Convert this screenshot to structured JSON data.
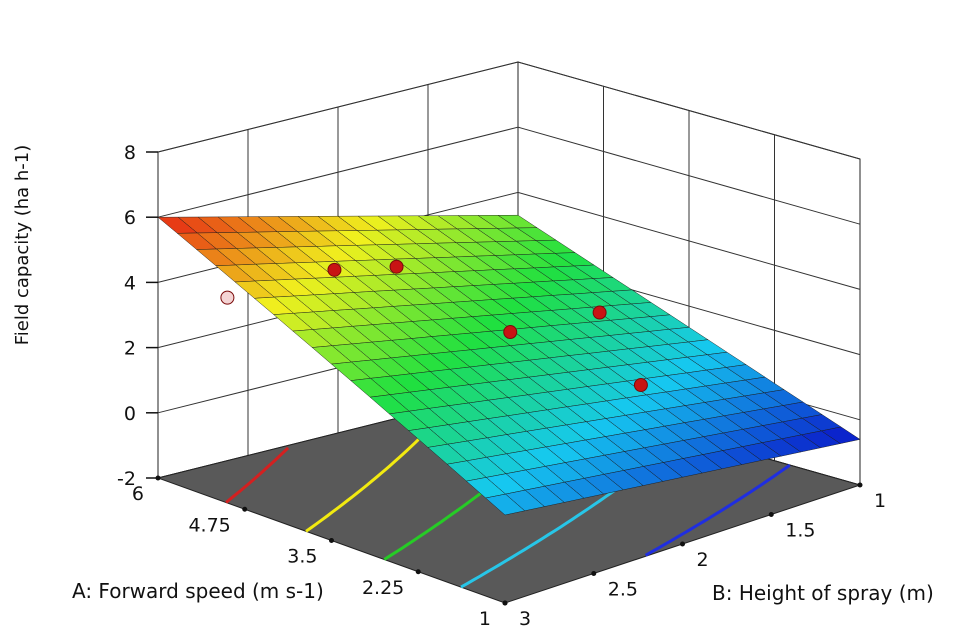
{
  "chart_data": {
    "type": "3d-surface",
    "title": "",
    "zlabel": "Field capacity (ha h-1)",
    "xlabel": "A: Forward speed (m s-1)",
    "ylabel": "B: Height of spray (m)",
    "z_ticks": [
      "8",
      "6",
      "4",
      "2",
      "0",
      "-2"
    ],
    "x_ticks": [
      "6",
      "4.75",
      "3.5",
      "2.25",
      "1"
    ],
    "y_ticks": [
      "1",
      "1.5",
      "2",
      "2.5",
      "3"
    ],
    "xlim": [
      1,
      6
    ],
    "ylim": [
      1,
      3
    ],
    "zlim": [
      -2,
      8
    ],
    "surface_corners": [
      {
        "A": 6,
        "B": 3,
        "z": 6.0
      },
      {
        "A": 1,
        "B": 3,
        "z": 0.7
      },
      {
        "A": 6,
        "B": 1,
        "z": 3.3
      },
      {
        "A": 1,
        "B": 1,
        "z": -0.6
      }
    ],
    "contour_levels": [
      {
        "name": "red",
        "color": "#d42020"
      },
      {
        "name": "yellow",
        "color": "#f2ea10"
      },
      {
        "name": "green",
        "color": "#26cc26"
      },
      {
        "name": "cyan",
        "color": "#27c6e8"
      },
      {
        "name": "blue",
        "color": "#1f2ee0"
      }
    ],
    "design_points": [
      {
        "A": 4.75,
        "B": 2.5,
        "z": 4.6,
        "above_surface": true
      },
      {
        "A": 4.5,
        "B": 2.25,
        "z": 4.5,
        "above_surface": true
      },
      {
        "A": 3.5,
        "B": 2.0,
        "z": 2.8,
        "above_surface": true
      },
      {
        "A": 2.25,
        "B": 1.75,
        "z": 1.6,
        "above_surface": true
      },
      {
        "A": 3.5,
        "B": 1.5,
        "z": 2.6,
        "above_surface": true
      },
      {
        "A": 5.0,
        "B": 3.0,
        "z": 4.3,
        "above_surface": false
      },
      {
        "A": 3.75,
        "B": 2.5,
        "z": 3.2,
        "above_surface": false
      },
      {
        "A": 1.75,
        "B": 1.25,
        "z": 0.6,
        "above_surface": false
      }
    ],
    "colormap": [
      "#0a14c8",
      "#16c8f0",
      "#20e040",
      "#f0f01e",
      "#e62014"
    ],
    "floor_color": "#595959",
    "grid": true
  }
}
